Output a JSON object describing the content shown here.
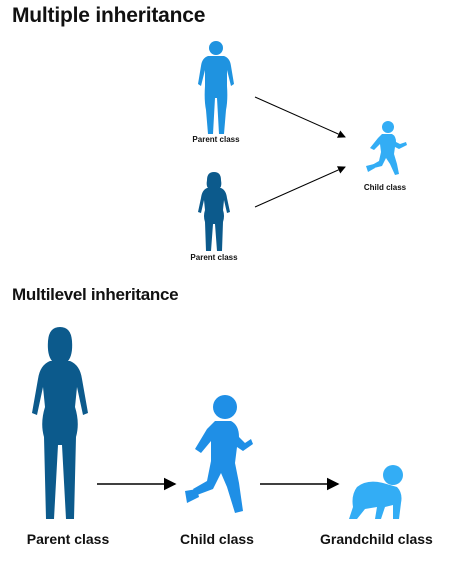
{
  "multiple": {
    "title": "Multiple inheritance",
    "parent_top_label": "Parent class",
    "parent_bottom_label": "Parent class",
    "child_label": "Child class"
  },
  "multilevel": {
    "title": "Multilevel inheritance",
    "parent_label": "Parent class",
    "child_label": "Child class",
    "grandchild_label": "Grandchild class"
  },
  "colors": {
    "light_blue": "#1f93e0",
    "dark_blue": "#0c5a8c",
    "mid_blue": "#1f8fe6",
    "bright_blue": "#33adf5",
    "arrow": "#000000"
  },
  "icons": {
    "top_parent": "man-silhouette-icon",
    "bottom_parent": "woman-silhouette-icon",
    "child": "running-child-icon",
    "grandchild": "crawling-baby-icon"
  }
}
